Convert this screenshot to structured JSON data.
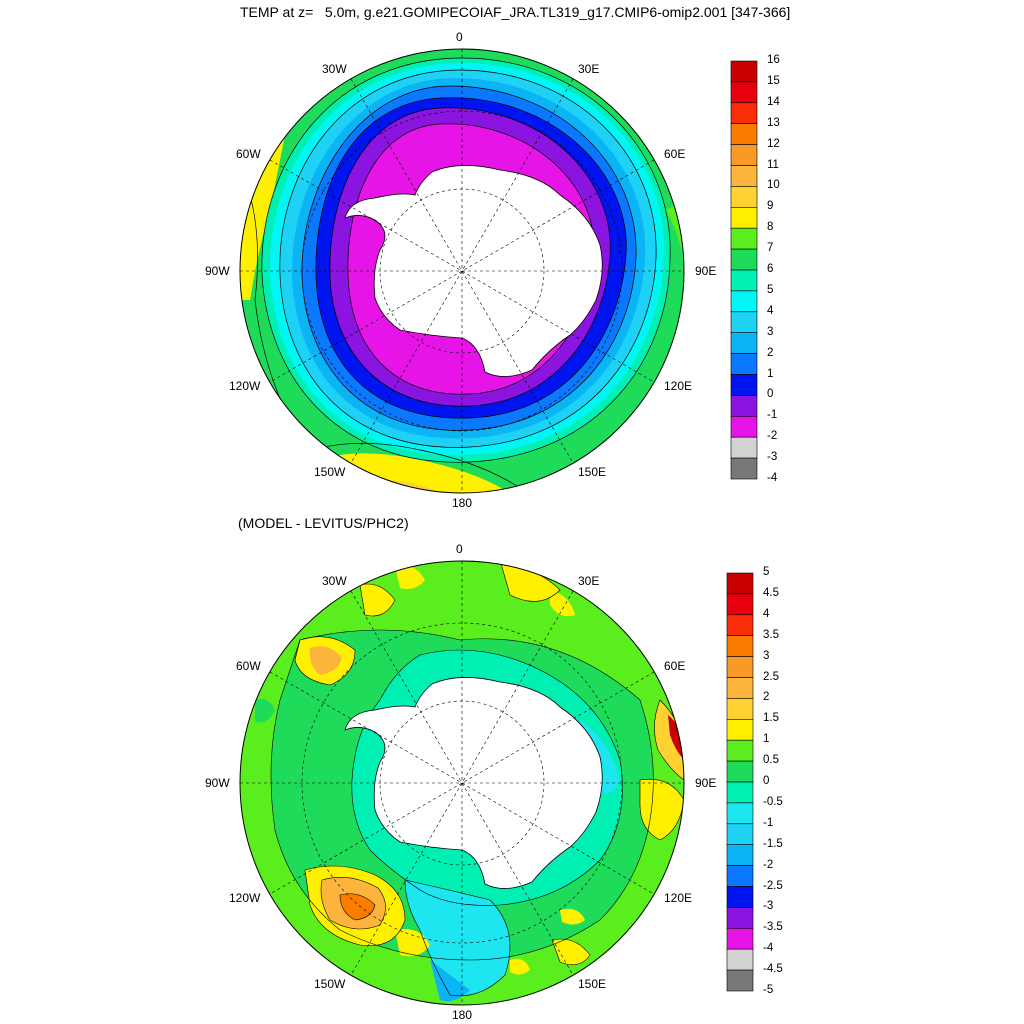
{
  "title_top": "TEMP at z=   5.0m, g.e21.GOMIPECOIAF_JRA.TL319_g17.CMIP6-omip2.001 [347-366]",
  "title_bottom": "(MODEL - LEVITUS/PHC2)",
  "lon_labels": [
    "0",
    "30E",
    "60E",
    "90E",
    "120E",
    "150E",
    "180",
    "150W",
    "120W",
    "90W",
    "60W",
    "30W"
  ],
  "top_colorbar": {
    "labels": [
      "16",
      "15",
      "14",
      "13",
      "12",
      "11",
      "10",
      "9",
      "8",
      "7",
      "6",
      "5",
      "4",
      "3",
      "2",
      "1",
      "0",
      "-1",
      "-2",
      "-3",
      "-4"
    ],
    "colors": [
      "#c80000",
      "#e8000c",
      "#fa2d0a",
      "#fa7d00",
      "#f89a28",
      "#fcb43c",
      "#ffd232",
      "#fff000",
      "#5aee1e",
      "#1edc5a",
      "#00f0b4",
      "#00f5f5",
      "#1ed2f5",
      "#0ab4f5",
      "#0a78ff",
      "#0014f0",
      "#8c14e1",
      "#e614e6",
      "#d2d2d2",
      "#787878"
    ]
  },
  "bottom_colorbar": {
    "labels": [
      "5",
      "4.5",
      "4",
      "3.5",
      "3",
      "2.5",
      "2",
      "1.5",
      "1",
      "0.5",
      "0",
      "-0.5",
      "-1",
      "-1.5",
      "-2",
      "-2.5",
      "-3",
      "-3.5",
      "-4",
      "-4.5",
      "-5"
    ],
    "colors": [
      "#c80000",
      "#e8000c",
      "#fa2d0a",
      "#fa7d00",
      "#f89a28",
      "#fcb43c",
      "#ffd232",
      "#fff000",
      "#5aee1e",
      "#1edc5a",
      "#00f0b4",
      "#1ee6f0",
      "#1ed2f5",
      "#0ab4f5",
      "#0a78ff",
      "#0014f0",
      "#8c14e1",
      "#e614e6",
      "#d2d2d2",
      "#787878"
    ]
  }
}
